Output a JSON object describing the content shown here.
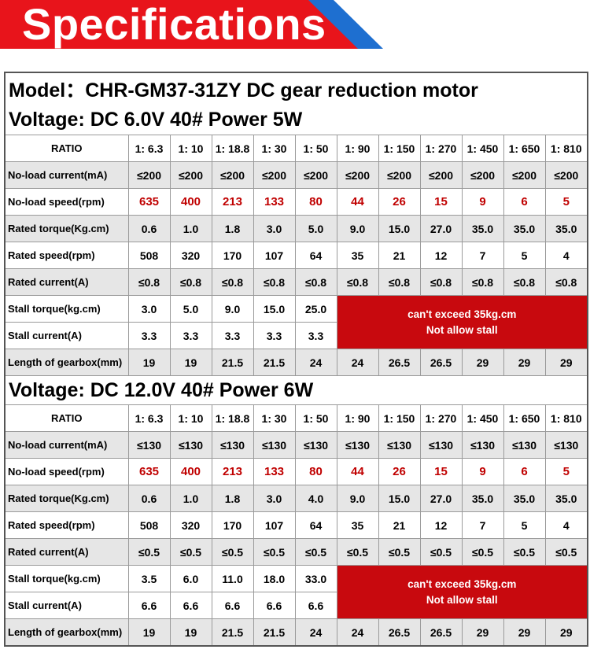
{
  "banner": {
    "title": "Specifications"
  },
  "model_line": "Model：CHR-GM37-31ZY DC gear reduction motor",
  "sections": [
    {
      "voltage_line": "Voltage: DC 6.0V  40#   Power 5W",
      "ratio_label": "RATIO",
      "ratios": [
        "1: 6.3",
        "1: 10",
        "1: 18.8",
        "1: 30",
        "1: 50",
        "1: 90",
        "1: 150",
        "1: 270",
        "1: 450",
        "1: 650",
        "1: 810"
      ],
      "noload_current_label": "No-load current(mA)",
      "noload_current": [
        "≤200",
        "≤200",
        "≤200",
        "≤200",
        "≤200",
        "≤200",
        "≤200",
        "≤200",
        "≤200",
        "≤200",
        "≤200"
      ],
      "noload_speed_label": "No-load speed(rpm)",
      "noload_speed": [
        "635",
        "400",
        "213",
        "133",
        "80",
        "44",
        "26",
        "15",
        "9",
        "6",
        "5"
      ],
      "rated_torque_label": "Rated torque(Kg.cm)",
      "rated_torque": [
        "0.6",
        "1.0",
        "1.8",
        "3.0",
        "5.0",
        "9.0",
        "15.0",
        "27.0",
        "35.0",
        "35.0",
        "35.0"
      ],
      "rated_speed_label": "Rated speed(rpm)",
      "rated_speed": [
        "508",
        "320",
        "170",
        "107",
        "64",
        "35",
        "21",
        "12",
        "7",
        "5",
        "4"
      ],
      "rated_current_label": "Rated current(A)",
      "rated_current": [
        "≤0.8",
        "≤0.8",
        "≤0.8",
        "≤0.8",
        "≤0.8",
        "≤0.8",
        "≤0.8",
        "≤0.8",
        "≤0.8",
        "≤0.8",
        "≤0.8"
      ],
      "stall_torque_label": "Stall torque(kg.cm)",
      "stall_torque": [
        "3.0",
        "5.0",
        "9.0",
        "15.0",
        "25.0"
      ],
      "stall_current_label": "Stall current(A)",
      "stall_current": [
        "3.3",
        "3.3",
        "3.3",
        "3.3",
        "3.3"
      ],
      "warning_line1": "can't exceed 35kg.cm",
      "warning_line2": "Not allow stall",
      "gearbox_label": "Length of gearbox(mm)",
      "gearbox_length": [
        "19",
        "19",
        "21.5",
        "21.5",
        "24",
        "24",
        "26.5",
        "26.5",
        "29",
        "29",
        "29"
      ]
    },
    {
      "voltage_line": "Voltage: DC 12.0V  40#   Power 6W",
      "ratio_label": "RATIO",
      "ratios": [
        "1: 6.3",
        "1: 10",
        "1: 18.8",
        "1: 30",
        "1: 50",
        "1: 90",
        "1: 150",
        "1: 270",
        "1: 450",
        "1: 650",
        "1: 810"
      ],
      "noload_current_label": "No-load current(mA)",
      "noload_current": [
        "≤130",
        "≤130",
        "≤130",
        "≤130",
        "≤130",
        "≤130",
        "≤130",
        "≤130",
        "≤130",
        "≤130",
        "≤130"
      ],
      "noload_speed_label": "No-load speed(rpm)",
      "noload_speed": [
        "635",
        "400",
        "213",
        "133",
        "80",
        "44",
        "26",
        "15",
        "9",
        "6",
        "5"
      ],
      "rated_torque_label": "Rated torque(Kg.cm)",
      "rated_torque": [
        "0.6",
        "1.0",
        "1.8",
        "3.0",
        "4.0",
        "9.0",
        "15.0",
        "27.0",
        "35.0",
        "35.0",
        "35.0"
      ],
      "rated_speed_label": "Rated speed(rpm)",
      "rated_speed": [
        "508",
        "320",
        "170",
        "107",
        "64",
        "35",
        "21",
        "12",
        "7",
        "5",
        "4"
      ],
      "rated_current_label": "Rated current(A)",
      "rated_current": [
        "≤0.5",
        "≤0.5",
        "≤0.5",
        "≤0.5",
        "≤0.5",
        "≤0.5",
        "≤0.5",
        "≤0.5",
        "≤0.5",
        "≤0.5",
        "≤0.5"
      ],
      "stall_torque_label": "Stall torque(kg.cm)",
      "stall_torque": [
        "3.5",
        "6.0",
        "11.0",
        "18.0",
        "33.0"
      ],
      "stall_current_label": "Stall current(A)",
      "stall_current": [
        "6.6",
        "6.6",
        "6.6",
        "6.6",
        "6.6"
      ],
      "warning_line1": "can't exceed 35kg.cm",
      "warning_line2": "Not allow stall",
      "gearbox_label": "Length of gearbox(mm)",
      "gearbox_length": [
        "19",
        "19",
        "21.5",
        "21.5",
        "24",
        "24",
        "26.5",
        "26.5",
        "29",
        "29",
        "29"
      ]
    }
  ]
}
